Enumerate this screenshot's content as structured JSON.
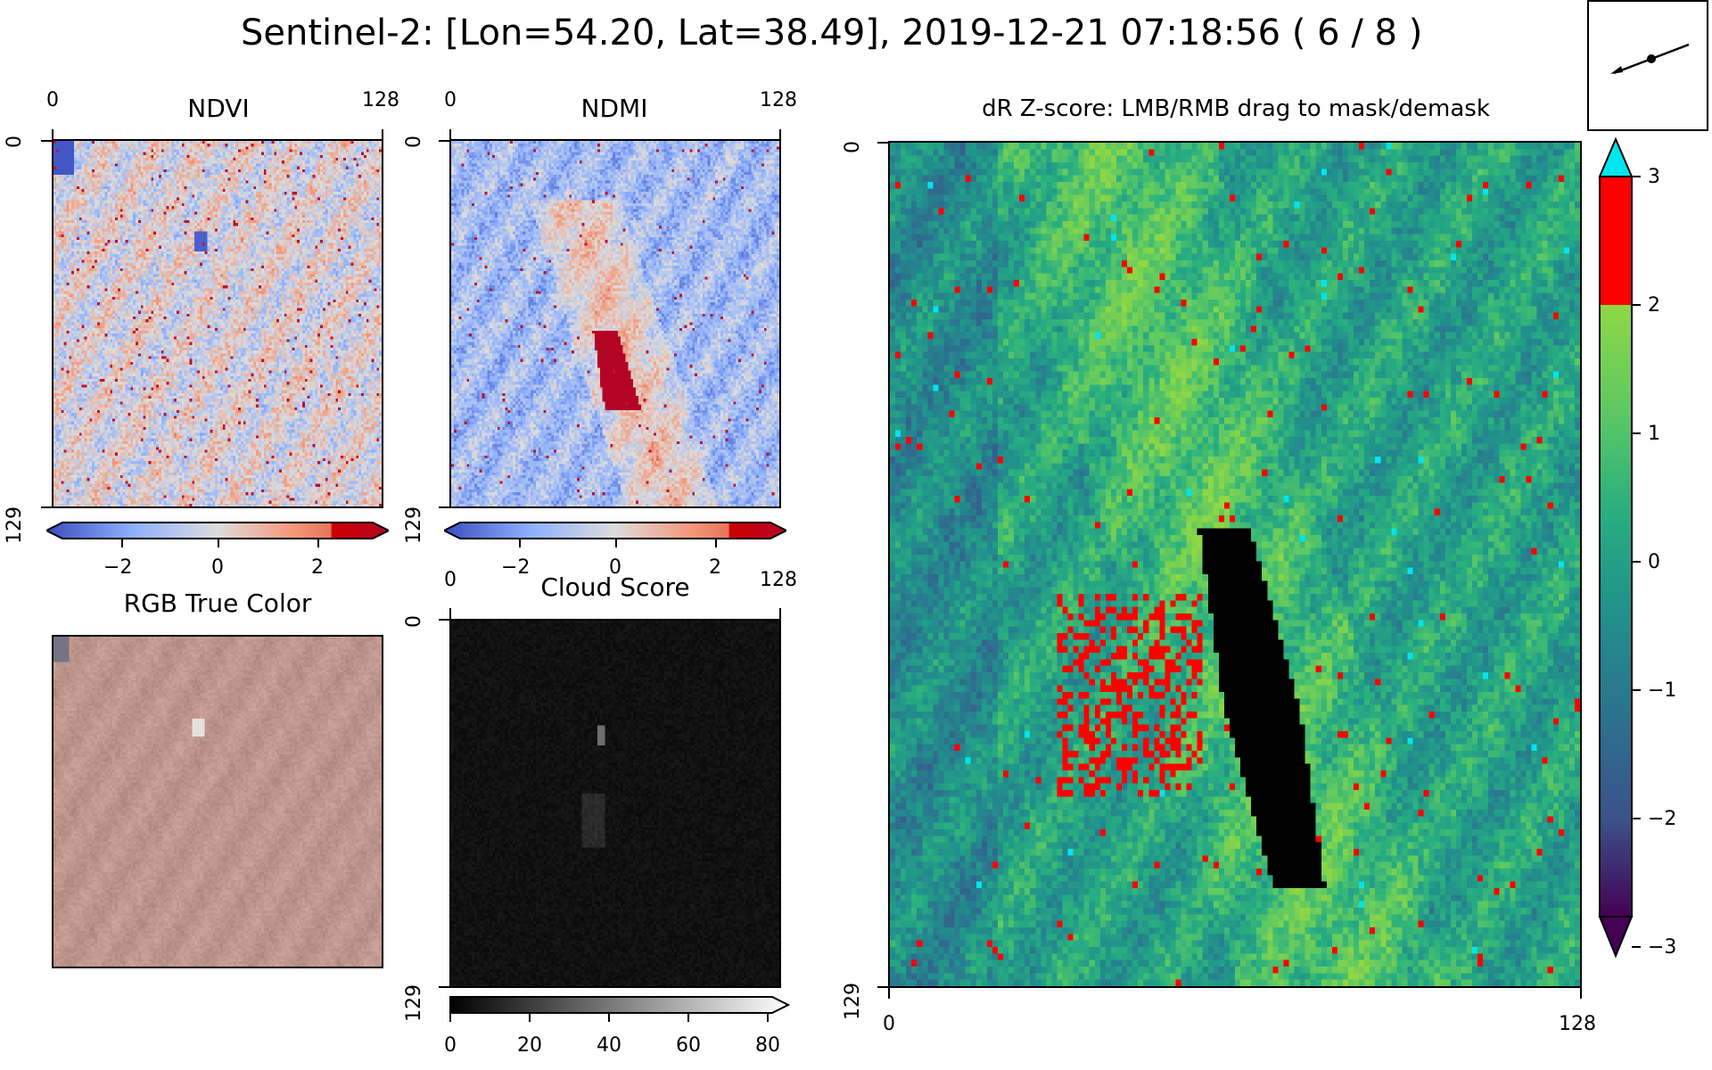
{
  "figure": {
    "title": "Sentinel-2: [Lon=54.20, Lat=38.49], 2019-12-21 07:18:56 ( 6 / 8 )"
  },
  "panels": {
    "ndvi": {
      "title": "NDVI",
      "x_ticks": [
        "0",
        "128"
      ],
      "y_ticks": [
        "0",
        "129"
      ],
      "colorbar_ticks": [
        "−2",
        "0",
        "2"
      ],
      "colormap": "coolwarm",
      "range": [
        -3,
        3
      ]
    },
    "ndmi": {
      "title": "NDMI",
      "x_ticks": [
        "0",
        "128"
      ],
      "y_ticks": [
        "0",
        "129"
      ],
      "colorbar_ticks": [
        "−2",
        "0",
        "2"
      ],
      "colormap": "coolwarm",
      "range": [
        -3,
        3
      ]
    },
    "rgb": {
      "title": "RGB True Color"
    },
    "cloud": {
      "title": "Cloud Score",
      "x_ticks": [
        "0",
        "128"
      ],
      "y_ticks": [
        "0",
        "129"
      ],
      "colorbar_ticks": [
        "0",
        "20",
        "40",
        "60",
        "80"
      ],
      "colormap": "gray",
      "range": [
        0,
        85
      ]
    },
    "zscore": {
      "title": "dR Z-score: LMB/RMB drag to mask/demask",
      "x_ticks": [
        "0",
        "128"
      ],
      "y_ticks": [
        "0",
        "129"
      ],
      "colorbar_ticks": [
        "3",
        "2",
        "1",
        "0",
        "−1",
        "−2",
        "−3"
      ],
      "colormap": "viridis",
      "range": [
        -3,
        3
      ],
      "highlight_above": 2,
      "highlight_color": "#ff0000",
      "over_color": "#00e5ee",
      "mask_color": "#000000"
    }
  },
  "navigator": {
    "icon": "direction-arrow-icon"
  }
}
